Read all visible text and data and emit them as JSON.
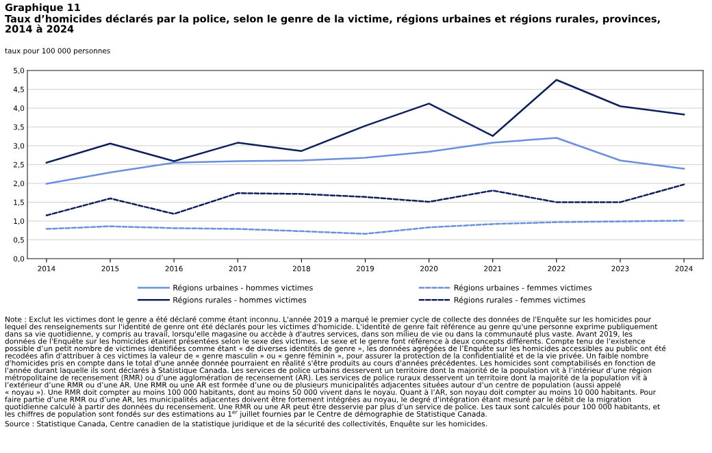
{
  "chart_data": {
    "type": "line",
    "title": "Graphique 11",
    "subtitle": "Taux d’homicides déclarés par la police, selon le genre de la victime, régions urbaines et régions rurales, provinces,\n2014 à 2024",
    "ylabel": "taux pour 100 000 personnes",
    "categories": [
      "2014",
      "2015",
      "2016",
      "2017",
      "2018",
      "2019",
      "2020",
      "2021",
      "2022",
      "2023",
      "2024"
    ],
    "series": [
      {
        "name": "Régions urbaines - hommes victimes",
        "color": "#6a8fdc",
        "line_style": "solid",
        "values": [
          1.99,
          2.29,
          2.55,
          2.59,
          2.61,
          2.68,
          2.84,
          3.08,
          3.21,
          2.61,
          2.39
        ]
      },
      {
        "name": "Régions rurales - hommes victimes",
        "color": "#0e1f5b",
        "line_style": "solid",
        "values": [
          2.55,
          3.06,
          2.59,
          3.08,
          2.86,
          3.53,
          4.12,
          3.26,
          4.75,
          4.05,
          3.83
        ]
      },
      {
        "name": "Régions urbaines - femmes victimes",
        "color": "#6a8fdc",
        "line_style": "dashed",
        "values": [
          0.79,
          0.86,
          0.81,
          0.79,
          0.73,
          0.66,
          0.83,
          0.92,
          0.97,
          0.99,
          1.01
        ]
      },
      {
        "name": "Régions rurales - femmes victimes",
        "color": "#0e1f5b",
        "line_style": "dashed",
        "values": [
          1.15,
          1.6,
          1.19,
          1.74,
          1.72,
          1.64,
          1.51,
          1.81,
          1.5,
          1.5,
          1.97
        ]
      }
    ],
    "ylim": [
      0,
      5
    ],
    "yticks": [
      {
        "value": 0,
        "label": "0,0"
      },
      {
        "value": 0.5,
        "label": "0,5"
      },
      {
        "value": 1,
        "label": "1,0"
      },
      {
        "value": 1.5,
        "label": "1,5"
      },
      {
        "value": 2,
        "label": "2,0"
      },
      {
        "value": 2.5,
        "label": "2,5"
      },
      {
        "value": 3,
        "label": "3,0"
      },
      {
        "value": 3.5,
        "label": "3,5"
      },
      {
        "value": 4,
        "label": "4,0"
      },
      {
        "value": 4.5,
        "label": "4,5"
      },
      {
        "value": 5,
        "label": "5,0"
      }
    ],
    "grid": "y",
    "legend": "bottom",
    "marker": "none",
    "annotations": [
      "Note : Exclut les victimes dont le genre a été déclaré comme étant inconnu. L'année 2019 a marqué le premier cycle de collecte des données de l'Enquête sur les homicides pour\nlequel des renseignements sur l'identité de genre ont été déclarés pour les victimes d'homicide. L'identité de genre fait référence au genre qu'une personne exprime publiquement\ndans sa vie quotidienne, y compris au travail, lorsqu'elle magasine ou accède à d'autres services, dans son milieu de vie ou dans la communauté plus vaste. Avant 2019, les\ndonnées de l'Enquête sur les homicides étaient présentées selon le sexe des victimes. Le sexe et le genre font référence à deux concepts différents. Compte tenu de l’existence\npossible d’un petit nombre de victimes identifiées comme étant « de diverses identités de genre », les données agrégées de l’Enquête sur les homicides accessibles au public ont été\nrecodées afin d'attribuer à ces victimes la valeur de « genre masculin » ou « genre féminin », pour assurer la protection de la confidentialité et de la vie privée. Un faible nombre\nd'homicides pris en compte dans le total d'une année donnée pourraient en réalité s'être produits au cours d'années précédentes. Les homicides sont comptabilisés en fonction de\nl'année durant laquelle ils sont déclarés à Statistique Canada. Les services de police urbains desservent un territoire dont la majorité de la population vit à l’intérieur d’une région\nmétropolitaine de recensement (RMR) ou d’une agglomération de recensement (AR). Les services de police ruraux desservent un territoire dont la majorité de la population vit à\nl’extérieur d’une RMR ou d’une AR. Une RMR ou une AR est formée d’une ou de plusieurs municipalités adjacentes situées autour d’un centre de population (aussi appelé\n« noyau »). Une RMR doit compter au moins 100 000 habitants, dont au moins 50 000 vivent dans le noyau. Quant à l’AR, son noyau doit compter au moins 10 000 habitants. Pour\nfaire partie d’une RMR ou d’une AR, les municipalités adjacentes doivent être fortement intégrées au noyau, le degré d’intégration étant mesuré par le débit de la migration\nquotidienne calculé à partir des données du recensement. Une RMR ou une AR peut être desservie par plus d’un service de police. Les taux sont calculés pour 100 000 habitants, et\nles chiffres de population sont fondés sur des estimations au 1$^{er}$ juillet fournies par le Centre de démographie de Statistique Canada.",
      "Source : Statistique Canada, Centre canadien de la statistique juridique et de la sécurité des collectivités, Enquête sur les homicides."
    ]
  }
}
